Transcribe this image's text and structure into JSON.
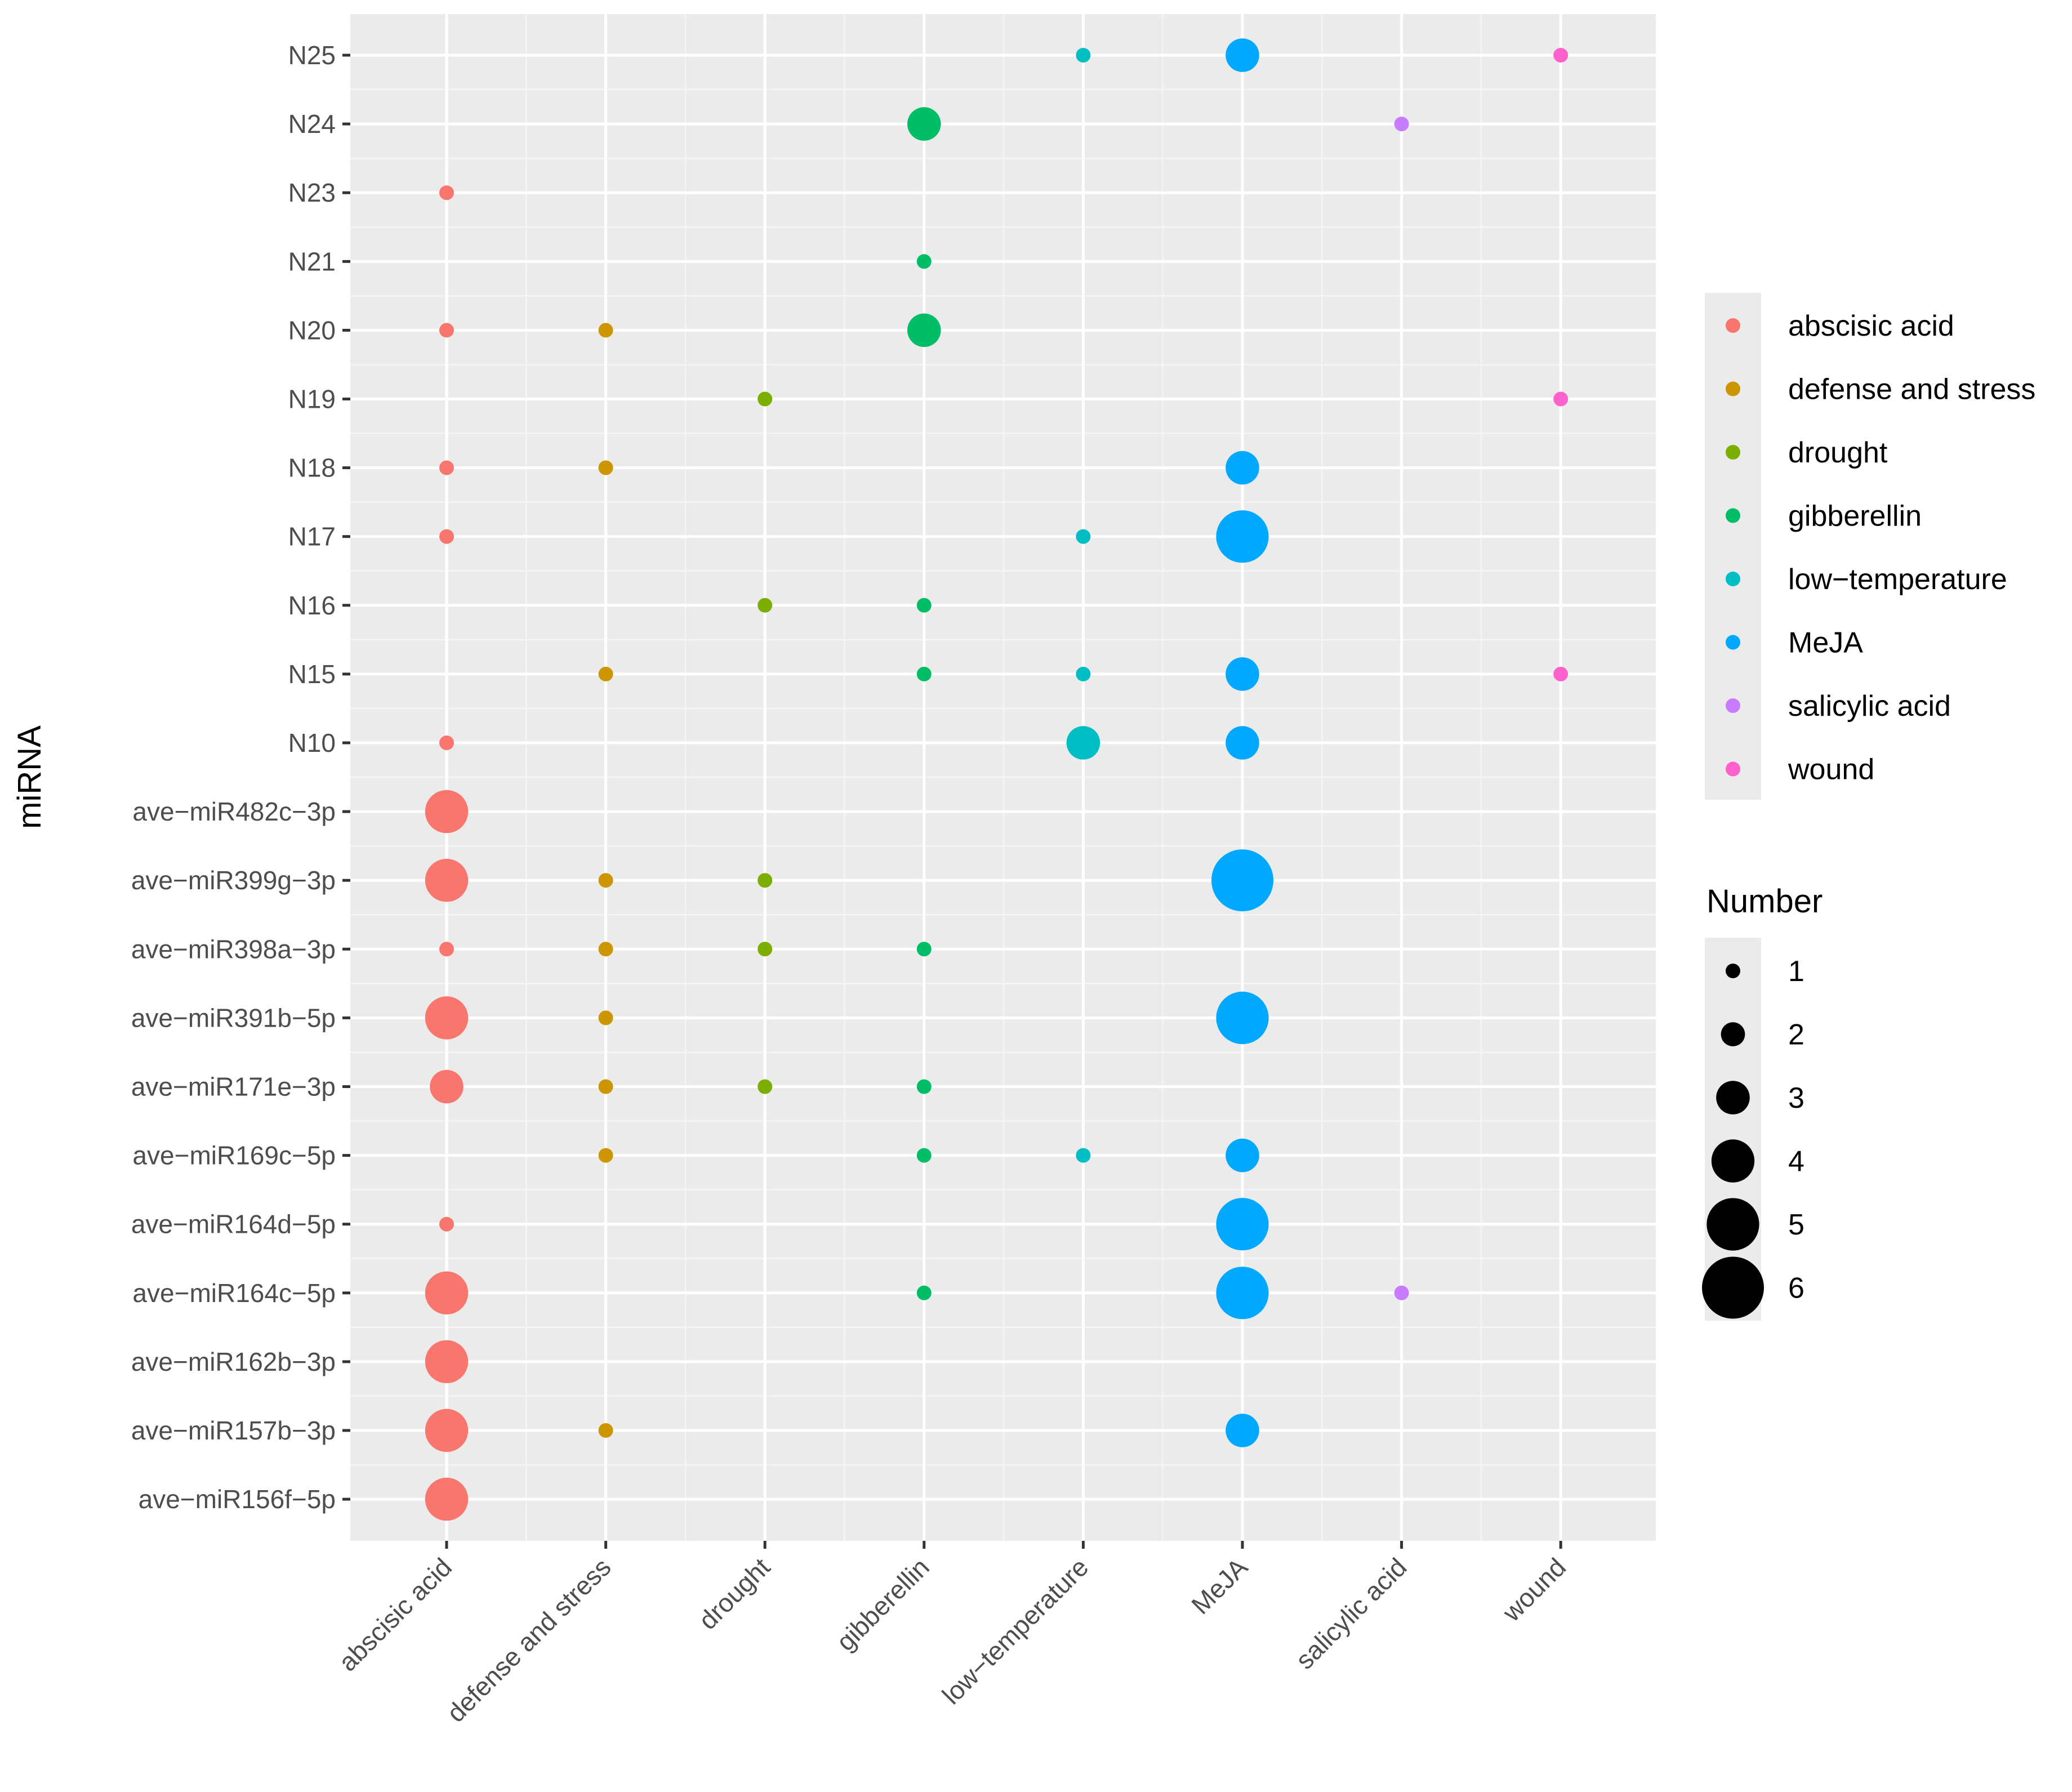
{
  "chart_data": {
    "type": "scatter",
    "title": "",
    "xlabel": "",
    "ylabel": "miRNA",
    "grid": true,
    "categories_x": [
      "abscisic acid",
      "defense and stress",
      "drought",
      "gibberellin",
      "low−temperature",
      "MeJA",
      "salicylic acid",
      "wound"
    ],
    "categories_y": [
      "N25",
      "N24",
      "N23",
      "N21",
      "N20",
      "N19",
      "N18",
      "N17",
      "N16",
      "N15",
      "N10",
      "ave−miR482c−3p",
      "ave−miR399g−3p",
      "ave−miR398a−3p",
      "ave−miR391b−5p",
      "ave−miR171e−3p",
      "ave−miR169c−5p",
      "ave−miR164d−5p",
      "ave−miR164c−5p",
      "ave−miR162b−3p",
      "ave−miR157b−3p",
      "ave−miR156f−5p"
    ],
    "colors": {
      "abscisic acid": "#F8766D",
      "defense and stress": "#CD9600",
      "drought": "#7CAE00",
      "gibberellin": "#00BE67",
      "low−temperature": "#00BFC4",
      "MeJA": "#00A9FF",
      "salicylic acid": "#C77CFF",
      "wound": "#FF61CC"
    },
    "points": [
      {
        "y": "N25",
        "x": "low−temperature",
        "number": 1
      },
      {
        "y": "N25",
        "x": "MeJA",
        "number": 3
      },
      {
        "y": "N25",
        "x": "wound",
        "number": 1
      },
      {
        "y": "N24",
        "x": "gibberellin",
        "number": 3
      },
      {
        "y": "N24",
        "x": "salicylic acid",
        "number": 1
      },
      {
        "y": "N23",
        "x": "abscisic acid",
        "number": 1
      },
      {
        "y": "N21",
        "x": "gibberellin",
        "number": 1
      },
      {
        "y": "N20",
        "x": "abscisic acid",
        "number": 1
      },
      {
        "y": "N20",
        "x": "defense and stress",
        "number": 1
      },
      {
        "y": "N20",
        "x": "gibberellin",
        "number": 3
      },
      {
        "y": "N19",
        "x": "drought",
        "number": 1
      },
      {
        "y": "N19",
        "x": "wound",
        "number": 1
      },
      {
        "y": "N18",
        "x": "abscisic acid",
        "number": 1
      },
      {
        "y": "N18",
        "x": "defense and stress",
        "number": 1
      },
      {
        "y": "N18",
        "x": "MeJA",
        "number": 3
      },
      {
        "y": "N17",
        "x": "abscisic acid",
        "number": 1
      },
      {
        "y": "N17",
        "x": "low−temperature",
        "number": 1
      },
      {
        "y": "N17",
        "x": "MeJA",
        "number": 5
      },
      {
        "y": "N16",
        "x": "drought",
        "number": 1
      },
      {
        "y": "N16",
        "x": "gibberellin",
        "number": 1
      },
      {
        "y": "N15",
        "x": "defense and stress",
        "number": 1
      },
      {
        "y": "N15",
        "x": "gibberellin",
        "number": 1
      },
      {
        "y": "N15",
        "x": "low−temperature",
        "number": 1
      },
      {
        "y": "N15",
        "x": "MeJA",
        "number": 3
      },
      {
        "y": "N15",
        "x": "wound",
        "number": 1
      },
      {
        "y": "N10",
        "x": "abscisic acid",
        "number": 1
      },
      {
        "y": "N10",
        "x": "low−temperature",
        "number": 3
      },
      {
        "y": "N10",
        "x": "MeJA",
        "number": 3
      },
      {
        "y": "ave−miR482c−3p",
        "x": "abscisic acid",
        "number": 4
      },
      {
        "y": "ave−miR399g−3p",
        "x": "abscisic acid",
        "number": 4
      },
      {
        "y": "ave−miR399g−3p",
        "x": "defense and stress",
        "number": 1
      },
      {
        "y": "ave−miR399g−3p",
        "x": "drought",
        "number": 1
      },
      {
        "y": "ave−miR399g−3p",
        "x": "MeJA",
        "number": 6
      },
      {
        "y": "ave−miR398a−3p",
        "x": "abscisic acid",
        "number": 1
      },
      {
        "y": "ave−miR398a−3p",
        "x": "defense and stress",
        "number": 1
      },
      {
        "y": "ave−miR398a−3p",
        "x": "drought",
        "number": 1
      },
      {
        "y": "ave−miR398a−3p",
        "x": "gibberellin",
        "number": 1
      },
      {
        "y": "ave−miR391b−5p",
        "x": "abscisic acid",
        "number": 4
      },
      {
        "y": "ave−miR391b−5p",
        "x": "defense and stress",
        "number": 1
      },
      {
        "y": "ave−miR391b−5p",
        "x": "MeJA",
        "number": 5
      },
      {
        "y": "ave−miR171e−3p",
        "x": "abscisic acid",
        "number": 3
      },
      {
        "y": "ave−miR171e−3p",
        "x": "defense and stress",
        "number": 1
      },
      {
        "y": "ave−miR171e−3p",
        "x": "drought",
        "number": 1
      },
      {
        "y": "ave−miR171e−3p",
        "x": "gibberellin",
        "number": 1
      },
      {
        "y": "ave−miR169c−5p",
        "x": "defense and stress",
        "number": 1
      },
      {
        "y": "ave−miR169c−5p",
        "x": "gibberellin",
        "number": 1
      },
      {
        "y": "ave−miR169c−5p",
        "x": "low−temperature",
        "number": 1
      },
      {
        "y": "ave−miR169c−5p",
        "x": "MeJA",
        "number": 3
      },
      {
        "y": "ave−miR164d−5p",
        "x": "abscisic acid",
        "number": 1
      },
      {
        "y": "ave−miR164d−5p",
        "x": "MeJA",
        "number": 5
      },
      {
        "y": "ave−miR164c−5p",
        "x": "abscisic acid",
        "number": 4
      },
      {
        "y": "ave−miR164c−5p",
        "x": "gibberellin",
        "number": 1
      },
      {
        "y": "ave−miR164c−5p",
        "x": "MeJA",
        "number": 5
      },
      {
        "y": "ave−miR164c−5p",
        "x": "salicylic acid",
        "number": 1
      },
      {
        "y": "ave−miR162b−3p",
        "x": "abscisic acid",
        "number": 4
      },
      {
        "y": "ave−miR157b−3p",
        "x": "abscisic acid",
        "number": 4
      },
      {
        "y": "ave−miR157b−3p",
        "x": "defense and stress",
        "number": 1
      },
      {
        "y": "ave−miR157b−3p",
        "x": "MeJA",
        "number": 3
      },
      {
        "y": "ave−miR156f−5p",
        "x": "abscisic acid",
        "number": 4
      }
    ],
    "legend_color": {
      "title": "",
      "entries": [
        "abscisic acid",
        "defense and stress",
        "drought",
        "gibberellin",
        "low−temperature",
        "MeJA",
        "salicylic acid",
        "wound"
      ]
    },
    "legend_size": {
      "title": "Number",
      "values": [
        1,
        2,
        3,
        4,
        5,
        6
      ],
      "labels": [
        "1",
        "2",
        "3",
        "4",
        "5",
        "6"
      ]
    }
  }
}
